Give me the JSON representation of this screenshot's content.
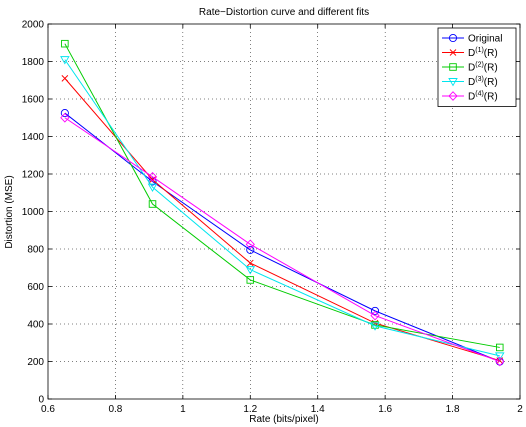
{
  "chart_data": {
    "type": "line",
    "title": "Rate−Distortion curve and different fits",
    "xlabel": "Rate (bits/pixel)",
    "ylabel": "Distortion (MSE)",
    "xlim": [
      0.6,
      2.0
    ],
    "ylim": [
      0,
      2000
    ],
    "xticks": [
      0.6,
      0.8,
      1.0,
      1.2,
      1.4,
      1.6,
      1.8,
      2.0
    ],
    "xtick_labels": [
      "0.6",
      "0.8",
      "1",
      "1.2",
      "1.4",
      "1.6",
      "1.8",
      "2"
    ],
    "yticks": [
      0,
      200,
      400,
      600,
      800,
      1000,
      1200,
      1400,
      1600,
      1800,
      2000
    ],
    "ytick_labels": [
      "0",
      "200",
      "400",
      "600",
      "800",
      "1000",
      "1200",
      "1400",
      "1600",
      "1800",
      "2000"
    ],
    "grid": true,
    "legend_position": "top-right",
    "x": [
      0.65,
      0.91,
      1.2,
      1.57,
      1.94
    ],
    "series": [
      {
        "name": "Original",
        "legend_base": "Original",
        "legend_sup": "",
        "legend_suffix": "",
        "color": "#0000ff",
        "marker": "circle",
        "values": [
          1525,
          1160,
          795,
          470,
          200
        ]
      },
      {
        "name": "D(1)(R)",
        "legend_base": "D",
        "legend_sup": "(1)",
        "legend_suffix": "(R)",
        "color": "#ff0000",
        "marker": "x",
        "values": [
          1710,
          1170,
          725,
          405,
          205
        ]
      },
      {
        "name": "D(2)(R)",
        "legend_base": "D",
        "legend_sup": "(2)",
        "legend_suffix": "(R)",
        "color": "#00cc00",
        "marker": "square",
        "values": [
          1895,
          1040,
          635,
          395,
          275
        ]
      },
      {
        "name": "D(3)(R)",
        "legend_base": "D",
        "legend_sup": "(3)",
        "legend_suffix": "(R)",
        "color": "#00e5ee",
        "marker": "triangle-down",
        "values": [
          1810,
          1130,
          690,
          390,
          230
        ]
      },
      {
        "name": "D(4)(R)",
        "legend_base": "D",
        "legend_sup": "(4)",
        "legend_suffix": "(R)",
        "color": "#ff00ff",
        "marker": "diamond",
        "values": [
          1500,
          1185,
          825,
          445,
          200
        ]
      }
    ]
  }
}
